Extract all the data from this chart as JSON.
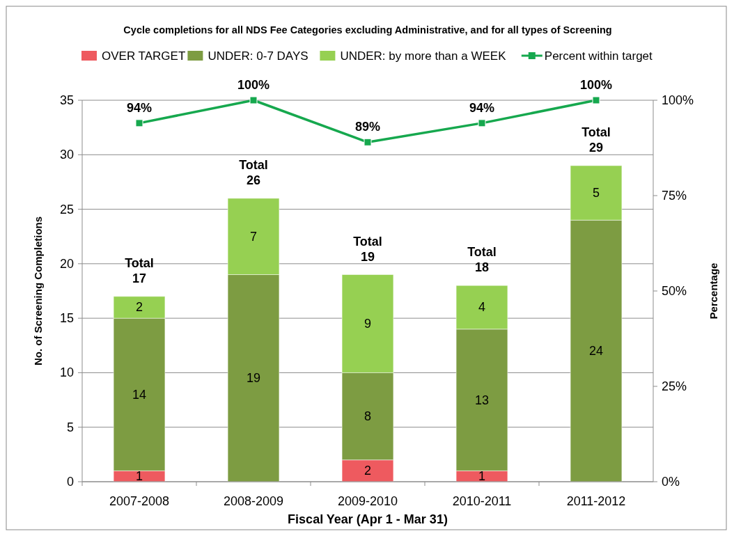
{
  "chart_data": {
    "type": "bar",
    "title": "Cycle completions for all NDS Fee Categories excluding Administrative, and for all types of Screening",
    "xlabel": "Fiscal Year (Apr 1 - Mar 31)",
    "ylabel": "No. of Screening Completions",
    "y2label": "Percentage",
    "categories": [
      "2007-2008",
      "2008-2009",
      "2009-2010",
      "2010-2011",
      "2011-2012"
    ],
    "stacked": true,
    "series": [
      {
        "name": "OVER TARGET",
        "color": "#ee5a5f",
        "values": [
          1,
          0,
          2,
          1,
          0
        ],
        "value_labels": [
          "1",
          null,
          "2",
          "1",
          null
        ]
      },
      {
        "name": "UNDER: 0-7 DAYS",
        "color": "#7d9c42",
        "values": [
          14,
          19,
          8,
          13,
          24
        ],
        "value_labels": [
          "14",
          "19",
          "8",
          "13",
          "24"
        ]
      },
      {
        "name": "UNDER: by more than a WEEK",
        "color": "#96d052",
        "values": [
          2,
          7,
          9,
          4,
          5
        ],
        "value_labels": [
          "2",
          "7",
          "9",
          "4",
          "5"
        ]
      },
      {
        "name": "Percent within target",
        "type": "line",
        "axis": "y2",
        "color": "#16a84e",
        "marker": "square",
        "values": [
          94,
          100,
          89,
          94,
          100
        ],
        "value_labels": [
          "94%",
          "100%",
          "89%",
          "94%",
          "100%"
        ]
      }
    ],
    "totals": [
      "Total 17",
      "Total 26",
      "Total 19",
      "Total 18",
      "Total 29"
    ],
    "ylim": [
      0,
      35
    ],
    "yticks": [
      0,
      5,
      10,
      15,
      20,
      25,
      30,
      35
    ],
    "y2lim": [
      0,
      100
    ],
    "y2ticks": [
      {
        "value": 0,
        "label": "0%"
      },
      {
        "value": 25,
        "label": "25%"
      },
      {
        "value": 50,
        "label": "50%"
      },
      {
        "value": 75,
        "label": "75%"
      },
      {
        "value": 100,
        "label": "100%"
      }
    ],
    "grid": "y",
    "legend": "top"
  }
}
